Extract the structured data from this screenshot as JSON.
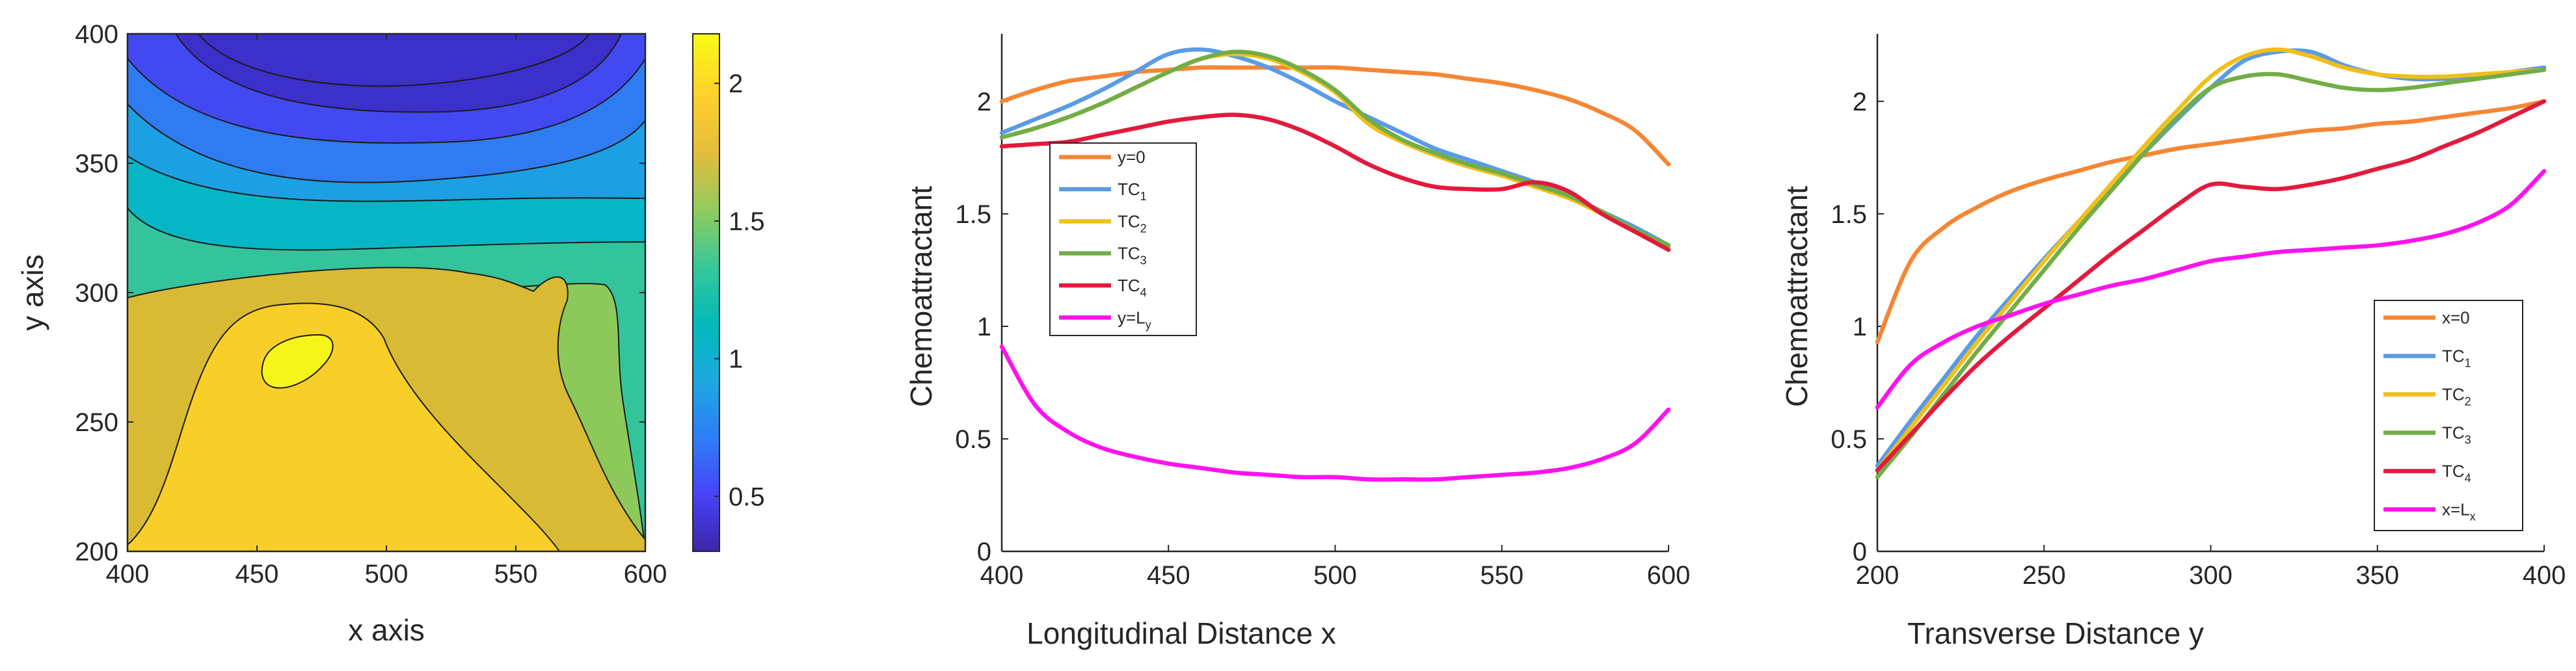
{
  "contour_panel": {
    "type": "heatmap",
    "xlabel": "x axis",
    "ylabel": "y axis",
    "xlim": [
      400,
      600
    ],
    "ylim": [
      200,
      400
    ],
    "xticks": [
      "400",
      "450",
      "500",
      "550",
      "600"
    ],
    "yticks": [
      "200",
      "250",
      "300",
      "350",
      "400"
    ],
    "colorbar": {
      "range": [
        0.3,
        2.18
      ],
      "ticks": [
        "0.5",
        "1",
        "1.5",
        "2"
      ],
      "tick_values": [
        0.5,
        1,
        1.5,
        2
      ],
      "colormap": [
        "#3e26a8",
        "#4743f9",
        "#2d7ef7",
        "#1ca8df",
        "#00bab9",
        "#37c899",
        "#90cb5c",
        "#e4bd3b",
        "#fdd02b",
        "#f9fb15"
      ]
    },
    "levels": [
      0.45,
      0.62,
      0.8,
      1.0,
      1.2,
      1.4,
      1.6,
      1.8,
      2.0,
      2.15
    ],
    "level_colors": [
      "#3b30ca",
      "#4349f0",
      "#2f7cf2",
      "#1d9fe3",
      "#07b6c6",
      "#33c49c",
      "#8dc95a",
      "#d8ba34",
      "#f8cf29",
      "#f6f519"
    ]
  },
  "chart_data": [
    {
      "type": "line",
      "xlabel": "Longitudinal Distance x",
      "ylabel": "Chemoattractant",
      "xlim": [
        400,
        600
      ],
      "ylim": [
        0,
        2.3
      ],
      "xticks": [
        "400",
        "450",
        "500",
        "550",
        "600"
      ],
      "yticks": [
        "0",
        "0.5",
        "1",
        "1.5",
        "2"
      ],
      "legend_location": "left",
      "x": [
        400,
        410,
        420,
        430,
        440,
        450,
        460,
        470,
        480,
        490,
        500,
        510,
        520,
        530,
        540,
        550,
        560,
        570,
        580,
        590,
        600
      ],
      "series": [
        {
          "name": "y=0",
          "label": "y=0",
          "color": "#f58634",
          "values": [
            2.0,
            2.05,
            2.09,
            2.11,
            2.13,
            2.14,
            2.15,
            2.15,
            2.15,
            2.15,
            2.15,
            2.14,
            2.13,
            2.12,
            2.1,
            2.08,
            2.05,
            2.01,
            1.95,
            1.87,
            1.72
          ]
        },
        {
          "name": "TC1",
          "label": "TC",
          "sub": "1",
          "color": "#5a9be8",
          "values": [
            1.86,
            1.92,
            1.98,
            2.05,
            2.13,
            2.21,
            2.23,
            2.2,
            2.15,
            2.08,
            2.0,
            1.93,
            1.86,
            1.79,
            1.74,
            1.69,
            1.64,
            1.58,
            1.51,
            1.44,
            1.36
          ]
        },
        {
          "name": "TC2",
          "label": "TC",
          "sub": "2",
          "color": "#f0bf1a",
          "values": [
            1.84,
            1.88,
            1.93,
            1.99,
            2.06,
            2.13,
            2.19,
            2.21,
            2.19,
            2.13,
            2.04,
            1.9,
            1.82,
            1.76,
            1.71,
            1.67,
            1.62,
            1.57,
            1.5,
            1.42,
            1.35
          ]
        },
        {
          "name": "TC3",
          "label": "TC",
          "sub": "3",
          "color": "#72ad47",
          "values": [
            1.84,
            1.88,
            1.93,
            1.99,
            2.06,
            2.13,
            2.19,
            2.22,
            2.2,
            2.14,
            2.05,
            1.92,
            1.83,
            1.77,
            1.72,
            1.68,
            1.63,
            1.58,
            1.51,
            1.43,
            1.36
          ]
        },
        {
          "name": "TC4",
          "label": "TC",
          "sub": "4",
          "color": "#e21a3c",
          "values": [
            1.8,
            1.81,
            1.82,
            1.85,
            1.88,
            1.91,
            1.93,
            1.94,
            1.92,
            1.87,
            1.8,
            1.72,
            1.66,
            1.62,
            1.61,
            1.61,
            1.64,
            1.6,
            1.5,
            1.42,
            1.34
          ]
        },
        {
          "name": "y=Ly",
          "label": "y=L",
          "sub": "y",
          "color": "#ff12ee",
          "values": [
            0.91,
            0.65,
            0.53,
            0.46,
            0.42,
            0.39,
            0.37,
            0.35,
            0.34,
            0.33,
            0.33,
            0.32,
            0.32,
            0.32,
            0.33,
            0.34,
            0.35,
            0.37,
            0.41,
            0.48,
            0.63
          ]
        }
      ]
    },
    {
      "type": "line",
      "xlabel": "Transverse Distance y",
      "ylabel": "Chemoattractant",
      "xlim": [
        200,
        400
      ],
      "ylim": [
        0,
        2.3
      ],
      "xticks": [
        "200",
        "250",
        "300",
        "350",
        "400"
      ],
      "yticks": [
        "0",
        "0.5",
        "1",
        "1.5",
        "2"
      ],
      "legend_location": "bottom-right",
      "x": [
        200,
        210,
        220,
        230,
        240,
        250,
        260,
        270,
        280,
        290,
        300,
        310,
        320,
        330,
        340,
        350,
        360,
        370,
        380,
        390,
        400
      ],
      "series": [
        {
          "name": "x=0",
          "label": "x=0",
          "color": "#f58634",
          "values": [
            0.93,
            1.29,
            1.44,
            1.53,
            1.6,
            1.65,
            1.69,
            1.73,
            1.76,
            1.79,
            1.81,
            1.83,
            1.85,
            1.87,
            1.88,
            1.9,
            1.91,
            1.93,
            1.95,
            1.97,
            2.0
          ]
        },
        {
          "name": "TC1",
          "label": "TC",
          "sub": "1",
          "color": "#5a9be8",
          "values": [
            0.38,
            0.58,
            0.77,
            0.96,
            1.13,
            1.3,
            1.46,
            1.62,
            1.77,
            1.92,
            2.06,
            2.18,
            2.22,
            2.22,
            2.16,
            2.12,
            2.1,
            2.1,
            2.11,
            2.13,
            2.15
          ]
        },
        {
          "name": "TC2",
          "label": "TC",
          "sub": "2",
          "color": "#f0bf1a",
          "values": [
            0.36,
            0.55,
            0.74,
            0.93,
            1.11,
            1.29,
            1.46,
            1.63,
            1.8,
            1.96,
            2.11,
            2.2,
            2.23,
            2.2,
            2.15,
            2.12,
            2.11,
            2.11,
            2.12,
            2.13,
            2.14
          ]
        },
        {
          "name": "TC3",
          "label": "TC",
          "sub": "3",
          "color": "#72ad47",
          "values": [
            0.33,
            0.51,
            0.7,
            0.89,
            1.07,
            1.25,
            1.43,
            1.6,
            1.77,
            1.93,
            2.06,
            2.11,
            2.12,
            2.09,
            2.06,
            2.05,
            2.06,
            2.08,
            2.1,
            2.12,
            2.14
          ]
        },
        {
          "name": "TC4",
          "label": "TC",
          "sub": "4",
          "color": "#e21a3c",
          "values": [
            0.36,
            0.52,
            0.68,
            0.83,
            0.96,
            1.08,
            1.2,
            1.32,
            1.43,
            1.54,
            1.63,
            1.62,
            1.61,
            1.63,
            1.66,
            1.7,
            1.74,
            1.8,
            1.86,
            1.93,
            2.0
          ]
        },
        {
          "name": "x=Lx",
          "label": "x=L",
          "sub": "x",
          "color": "#ff12ee",
          "values": [
            0.64,
            0.83,
            0.93,
            1.0,
            1.05,
            1.1,
            1.14,
            1.18,
            1.21,
            1.25,
            1.29,
            1.31,
            1.33,
            1.34,
            1.35,
            1.36,
            1.38,
            1.41,
            1.46,
            1.54,
            1.69
          ]
        }
      ]
    }
  ]
}
